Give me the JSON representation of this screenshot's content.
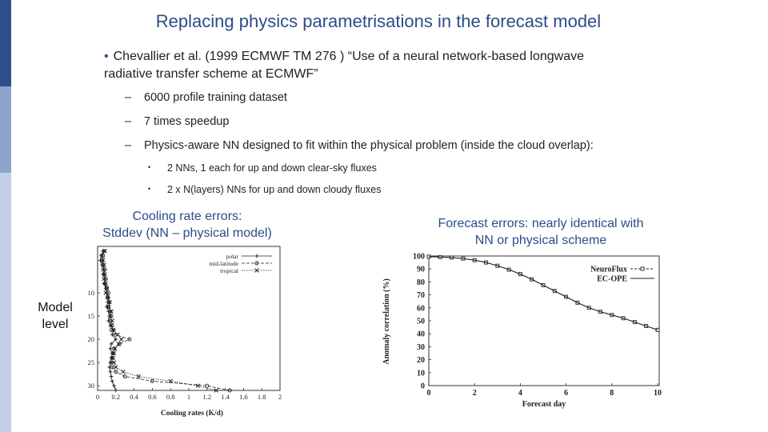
{
  "title": "Replacing physics parametrisations in the forecast model",
  "main_bullet": {
    "line1": "Chevallier et al. (1999 ECMWF TM 276 ) “Use of a neural network-based longwave",
    "line2": "radiative transfer scheme at ECMWF”"
  },
  "sub_bullets": [
    "6000 profile training dataset",
    "7 times speedup",
    "Physics-aware NN designed to fit within the physical problem (inside the cloud overlap):"
  ],
  "subsub_bullets": [
    "2 NNs, 1 each for up and down clear-sky fluxes",
    "2 x N(layers) NNs for up and down cloudy fluxes"
  ],
  "left_caption": {
    "line1": "Cooling rate errors:",
    "line2": "Stddev (NN – physical model)"
  },
  "right_caption": {
    "line1": "Forecast errors: nearly identical with",
    "line2": "NN or physical scheme"
  },
  "model_level_label": {
    "line1": "Model",
    "line2": "level"
  },
  "colors": {
    "title": "#2e4b8a",
    "sidebar_dark": "#2c4f8c",
    "sidebar_mid": "#8fa3cf",
    "sidebar_light": "#c5d0e8"
  },
  "chart_data": [
    {
      "type": "line",
      "xlabel": "Cooling rates (K/d)",
      "ylabel": "",
      "xlim": [
        0,
        2
      ],
      "ylim": [
        31,
        0
      ],
      "xticks": [
        "0",
        "0.2",
        "0.4",
        "0.6",
        "0.8",
        "1",
        "1.2",
        "1.4",
        "1.6",
        "1.8",
        "2"
      ],
      "yticks": [
        "10",
        "15",
        "20",
        "25",
        "30"
      ],
      "legend_position": "top-right",
      "series": [
        {
          "name": "polar",
          "marker": "+",
          "x": [
            0.06,
            0.04,
            0.03,
            0.05,
            0.07,
            0.06,
            0.08,
            0.07,
            0.09,
            0.1,
            0.12,
            0.11,
            0.1,
            0.12,
            0.13,
            0.12,
            0.14,
            0.18,
            0.16,
            0.2,
            0.15,
            0.14,
            0.16,
            0.15,
            0.14,
            0.13,
            0.14,
            0.15,
            0.16,
            0.18,
            0.2
          ],
          "y": [
            1,
            2,
            3,
            4,
            5,
            6,
            7,
            8,
            9,
            10,
            11,
            12,
            13,
            14,
            15,
            16,
            17,
            18,
            19,
            20,
            21,
            22,
            23,
            24,
            25,
            26,
            27,
            28,
            29,
            30,
            31
          ]
        },
        {
          "name": "mid-latitude",
          "marker": "o",
          "x": [
            0.07,
            0.06,
            0.05,
            0.06,
            0.08,
            0.07,
            0.09,
            0.08,
            0.1,
            0.12,
            0.11,
            0.13,
            0.12,
            0.14,
            0.15,
            0.14,
            0.16,
            0.15,
            0.2,
            0.35,
            0.24,
            0.18,
            0.17,
            0.16,
            0.15,
            0.16,
            0.2,
            0.3,
            0.6,
            1.2,
            1.45
          ],
          "y": [
            1,
            2,
            3,
            4,
            5,
            6,
            7,
            8,
            9,
            10,
            11,
            12,
            13,
            14,
            15,
            16,
            17,
            18,
            19,
            20,
            21,
            22,
            23,
            24,
            25,
            26,
            27,
            28,
            29,
            30,
            31
          ]
        },
        {
          "name": "tropical",
          "marker": "x",
          "x": [
            0.08,
            0.05,
            0.06,
            0.07,
            0.06,
            0.08,
            0.07,
            0.09,
            0.1,
            0.09,
            0.11,
            0.13,
            0.12,
            0.15,
            0.14,
            0.16,
            0.15,
            0.17,
            0.22,
            0.26,
            0.23,
            0.19,
            0.18,
            0.17,
            0.18,
            0.2,
            0.28,
            0.45,
            0.8,
            1.1,
            1.3
          ],
          "y": [
            1,
            2,
            3,
            4,
            5,
            6,
            7,
            8,
            9,
            10,
            11,
            12,
            13,
            14,
            15,
            16,
            17,
            18,
            19,
            20,
            21,
            22,
            23,
            24,
            25,
            26,
            27,
            28,
            29,
            30,
            31
          ]
        }
      ]
    },
    {
      "type": "line",
      "xlabel": "Forecast day",
      "ylabel": "Anomaly correlation (%)",
      "xlim": [
        0,
        10
      ],
      "ylim": [
        0,
        100
      ],
      "xticks": [
        "0",
        "2",
        "4",
        "6",
        "8",
        "10"
      ],
      "yticks": [
        "0",
        "10",
        "20",
        "30",
        "40",
        "50",
        "60",
        "70",
        "80",
        "90",
        "100"
      ],
      "legend_position": "top-right",
      "series": [
        {
          "name": "NeuroFlux",
          "marker": "square",
          "x": [
            0,
            0.5,
            1,
            1.5,
            2,
            2.5,
            3,
            3.5,
            4,
            4.5,
            5,
            5.5,
            6,
            6.5,
            7,
            7.5,
            8,
            8.5,
            9,
            9.5,
            10
          ],
          "y": [
            99.5,
            99.2,
            98.8,
            98,
            96.8,
            95,
            92.5,
            89.5,
            86,
            82,
            77.5,
            73,
            68.5,
            64,
            60,
            57,
            54.5,
            52,
            49,
            46,
            43
          ]
        },
        {
          "name": "EC-OPE",
          "marker": "none",
          "x": [
            0,
            0.5,
            1,
            1.5,
            2,
            2.5,
            3,
            3.5,
            4,
            4.5,
            5,
            5.5,
            6,
            6.5,
            7,
            7.5,
            8,
            8.5,
            9,
            9.5,
            10
          ],
          "y": [
            99.5,
            99.2,
            98.8,
            98,
            96.8,
            95,
            92.5,
            89.5,
            86,
            82,
            77.5,
            73,
            68.5,
            64,
            60,
            57,
            54.5,
            52,
            49,
            46,
            43
          ]
        }
      ]
    }
  ]
}
